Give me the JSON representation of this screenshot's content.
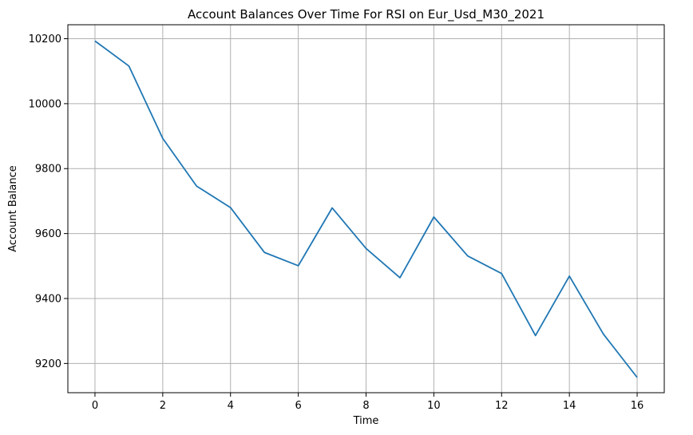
{
  "chart_data": {
    "type": "line",
    "title": "Account Balances Over Time For RSI on Eur_Usd_M30_2021",
    "xlabel": "Time",
    "ylabel": "Account Balance",
    "x": [
      0,
      1,
      2,
      3,
      4,
      5,
      6,
      7,
      8,
      9,
      10,
      11,
      12,
      13,
      14,
      15,
      16
    ],
    "series": [
      {
        "values": [
          10193,
          10116,
          9893,
          9746,
          9680,
          9542,
          9501,
          9679,
          9554,
          9464,
          9651,
          9531,
          9477,
          9286,
          9469,
          9291,
          9157
        ],
        "color": "#1f77b4"
      }
    ],
    "xlim": [
      -0.8,
      16.8
    ],
    "ylim": [
      9110,
      10243
    ],
    "xticks": [
      0,
      2,
      4,
      6,
      8,
      10,
      12,
      14,
      16
    ],
    "yticks": [
      9200,
      9400,
      9600,
      9800,
      10000,
      10200
    ],
    "grid": true
  }
}
